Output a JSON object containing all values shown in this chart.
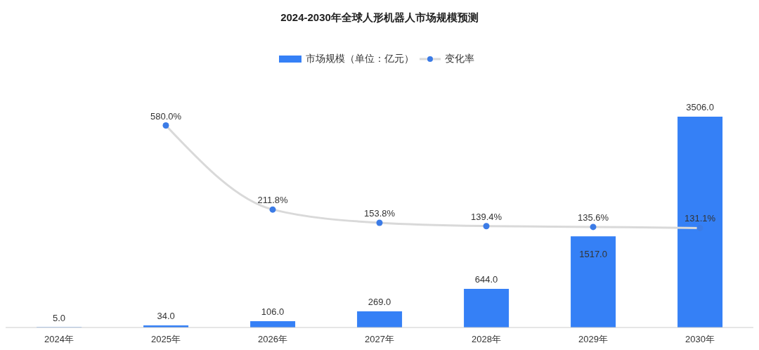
{
  "chart_data": {
    "type": "bar",
    "title": "2024-2030年全球人形机器人市场规模预测",
    "categories": [
      "2024年",
      "2025年",
      "2026年",
      "2027年",
      "2028年",
      "2029年",
      "2030年"
    ],
    "series": [
      {
        "name": "市场规模（单位：亿元）",
        "color": "#3580f6",
        "values": [
          5.0,
          34.0,
          106.0,
          269.0,
          644.0,
          1517.0,
          3506.0
        ],
        "value_labels": [
          "5.0",
          "34.0",
          "106.0",
          "269.0",
          "644.0",
          "1517.0",
          "3506.0"
        ]
      },
      {
        "name": "变化率",
        "type": "line",
        "axis": "y2",
        "color": "#d9d9d9",
        "colors": [
          null,
          "#3b7be6",
          "#3b7be6",
          "#3b7be6",
          "#3b7be6",
          "#3b7be6",
          "#3b7be6"
        ],
        "values": [
          null,
          580.0,
          211.8,
          153.8,
          139.4,
          135.6,
          131.1
        ],
        "value_labels": [
          null,
          "580.0%",
          "211.8%",
          "153.8%",
          "139.4%",
          "135.6%",
          "131.1%"
        ]
      }
    ],
    "legend": "top",
    "marker": "circle",
    "tick_labels": "x"
  }
}
